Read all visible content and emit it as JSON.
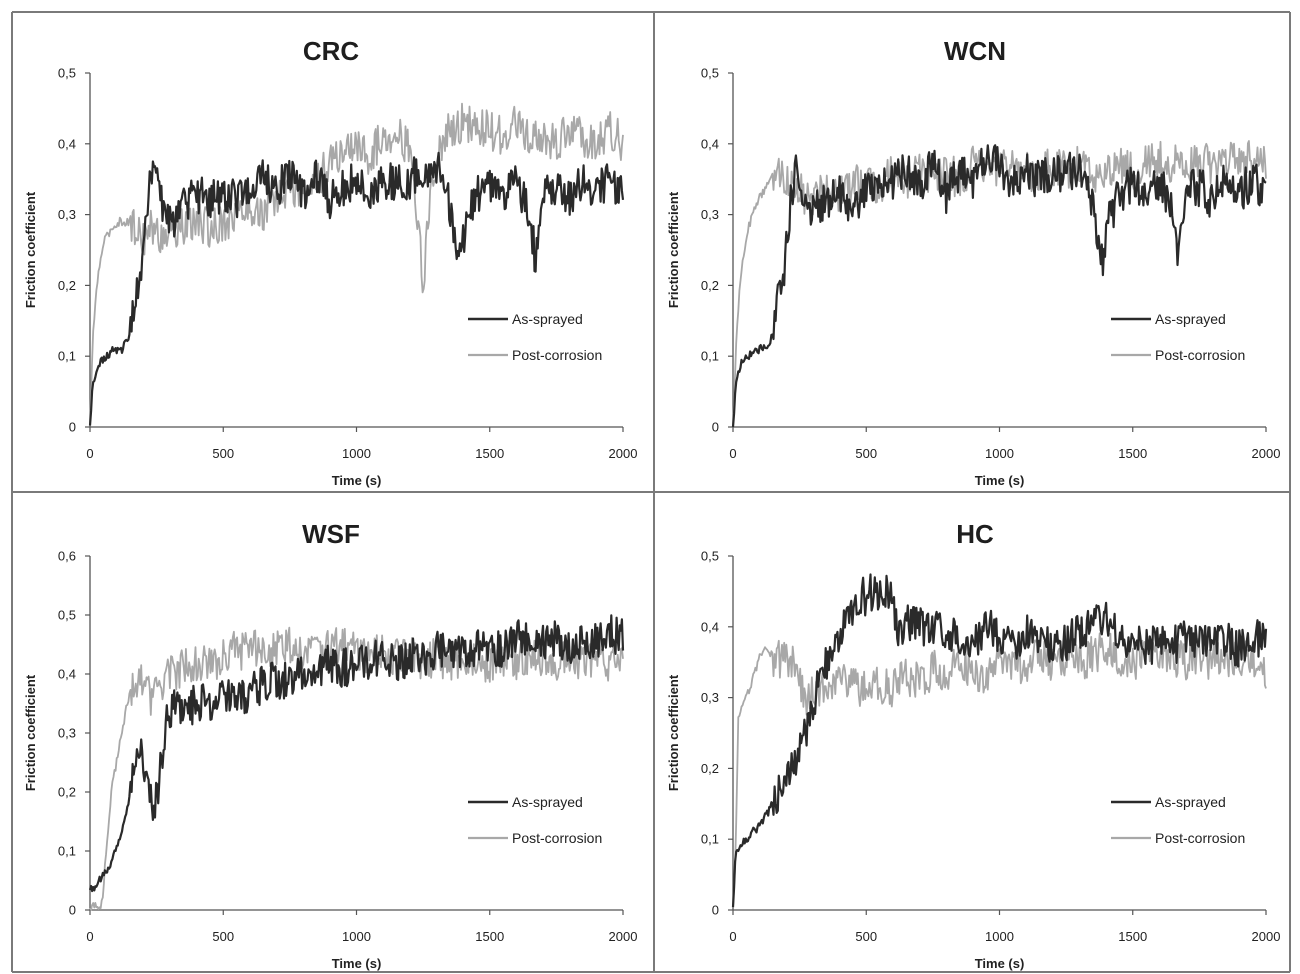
{
  "colors": {
    "as_sprayed": "#2a2a2a",
    "post_corrosion": "#a8a8a8",
    "frame": "#7a7a7a",
    "axis": "#555555"
  },
  "chart_data": [
    {
      "type": "line",
      "title": "CRC",
      "xlabel": "Time (s)",
      "ylabel": "Friction coefficient",
      "xlim": [
        0,
        2000
      ],
      "ylim": [
        0,
        0.5
      ],
      "x_ticks": [
        "0",
        "500",
        "1000",
        "1500",
        "2000"
      ],
      "y_ticks": [
        "0",
        "0,1",
        "0,2",
        "0,3",
        "0,4",
        "0,5"
      ],
      "legend": {
        "placement": "bottom-right",
        "entries": [
          "As-sprayed",
          "Post-corrosion"
        ]
      },
      "grid": false,
      "series": [
        {
          "name": "As-sprayed",
          "x": [
            0,
            10,
            30,
            60,
            90,
            120,
            150,
            170,
            190,
            210,
            230,
            240,
            260,
            300,
            350,
            400,
            450,
            500,
            550,
            600,
            650,
            700,
            750,
            800,
            850,
            900,
            950,
            1000,
            1050,
            1100,
            1150,
            1200,
            1250,
            1300,
            1340,
            1370,
            1390,
            1410,
            1450,
            1500,
            1550,
            1600,
            1650,
            1670,
            1700,
            1750,
            1800,
            1850,
            1900,
            1950,
            2000
          ],
          "y": [
            0.0,
            0.06,
            0.09,
            0.1,
            0.11,
            0.11,
            0.13,
            0.18,
            0.22,
            0.3,
            0.35,
            0.37,
            0.32,
            0.29,
            0.31,
            0.33,
            0.32,
            0.33,
            0.32,
            0.34,
            0.35,
            0.33,
            0.36,
            0.33,
            0.35,
            0.32,
            0.34,
            0.35,
            0.33,
            0.35,
            0.34,
            0.35,
            0.36,
            0.37,
            0.34,
            0.25,
            0.24,
            0.29,
            0.33,
            0.34,
            0.32,
            0.35,
            0.3,
            0.24,
            0.33,
            0.34,
            0.32,
            0.35,
            0.33,
            0.35,
            0.33
          ]
        },
        {
          "name": "Post-corrosion",
          "x": [
            0,
            10,
            25,
            50,
            80,
            110,
            140,
            170,
            200,
            230,
            260,
            300,
            350,
            400,
            450,
            500,
            550,
            600,
            650,
            700,
            750,
            800,
            850,
            900,
            950,
            1000,
            1050,
            1100,
            1150,
            1200,
            1230,
            1250,
            1280,
            1320,
            1350,
            1400,
            1450,
            1500,
            1550,
            1600,
            1650,
            1700,
            1750,
            1800,
            1850,
            1900,
            1950,
            2000
          ],
          "y": [
            0.0,
            0.12,
            0.2,
            0.26,
            0.28,
            0.29,
            0.29,
            0.28,
            0.27,
            0.28,
            0.27,
            0.28,
            0.28,
            0.29,
            0.28,
            0.29,
            0.3,
            0.31,
            0.3,
            0.32,
            0.34,
            0.33,
            0.35,
            0.37,
            0.39,
            0.4,
            0.38,
            0.41,
            0.42,
            0.39,
            0.3,
            0.19,
            0.35,
            0.4,
            0.42,
            0.43,
            0.42,
            0.42,
            0.41,
            0.43,
            0.4,
            0.41,
            0.4,
            0.42,
            0.41,
            0.4,
            0.42,
            0.4
          ]
        }
      ]
    },
    {
      "type": "line",
      "title": "WCN",
      "xlabel": "Time (s)",
      "ylabel": "Friction coefficient",
      "xlim": [
        0,
        2000
      ],
      "ylim": [
        0,
        0.5
      ],
      "x_ticks": [
        "0",
        "500",
        "1000",
        "1500",
        "2000"
      ],
      "y_ticks": [
        "0",
        "0,1",
        "0,2",
        "0,3",
        "0,4",
        "0,5"
      ],
      "legend": {
        "placement": "bottom-right",
        "entries": [
          "As-sprayed",
          "Post-corrosion"
        ]
      },
      "grid": false,
      "series": [
        {
          "name": "As-sprayed",
          "x": [
            0,
            10,
            30,
            60,
            90,
            120,
            150,
            170,
            190,
            210,
            230,
            240,
            260,
            300,
            350,
            400,
            450,
            500,
            550,
            600,
            650,
            700,
            750,
            800,
            850,
            900,
            950,
            1000,
            1050,
            1100,
            1150,
            1200,
            1250,
            1300,
            1340,
            1370,
            1390,
            1410,
            1450,
            1500,
            1550,
            1600,
            1650,
            1670,
            1700,
            1750,
            1800,
            1850,
            1900,
            1950,
            2000
          ],
          "y": [
            0.0,
            0.06,
            0.09,
            0.1,
            0.11,
            0.11,
            0.13,
            0.18,
            0.22,
            0.3,
            0.35,
            0.37,
            0.33,
            0.3,
            0.32,
            0.33,
            0.31,
            0.34,
            0.33,
            0.35,
            0.36,
            0.34,
            0.37,
            0.33,
            0.36,
            0.34,
            0.38,
            0.37,
            0.34,
            0.36,
            0.35,
            0.36,
            0.36,
            0.36,
            0.33,
            0.26,
            0.24,
            0.29,
            0.33,
            0.34,
            0.32,
            0.35,
            0.3,
            0.24,
            0.33,
            0.34,
            0.32,
            0.35,
            0.33,
            0.35,
            0.33
          ]
        },
        {
          "name": "Post-corrosion",
          "x": [
            0,
            10,
            25,
            50,
            80,
            110,
            140,
            170,
            200,
            240,
            280,
            320,
            360,
            400,
            450,
            500,
            550,
            600,
            650,
            700,
            750,
            800,
            850,
            900,
            950,
            1000,
            1050,
            1100,
            1150,
            1200,
            1250,
            1300,
            1350,
            1400,
            1450,
            1500,
            1550,
            1600,
            1650,
            1700,
            1750,
            1800,
            1850,
            1900,
            1950,
            2000
          ],
          "y": [
            0.0,
            0.1,
            0.2,
            0.27,
            0.31,
            0.33,
            0.35,
            0.36,
            0.35,
            0.34,
            0.32,
            0.33,
            0.34,
            0.33,
            0.34,
            0.35,
            0.34,
            0.36,
            0.35,
            0.36,
            0.35,
            0.36,
            0.35,
            0.37,
            0.36,
            0.36,
            0.37,
            0.36,
            0.36,
            0.37,
            0.36,
            0.37,
            0.36,
            0.36,
            0.37,
            0.36,
            0.37,
            0.38,
            0.37,
            0.37,
            0.38,
            0.37,
            0.38,
            0.37,
            0.38,
            0.37
          ]
        }
      ]
    },
    {
      "type": "line",
      "title": "WSF",
      "xlabel": "Time (s)",
      "ylabel": "Friction coefficient",
      "xlim": [
        0,
        2000
      ],
      "ylim": [
        0,
        0.6
      ],
      "x_ticks": [
        "0",
        "500",
        "1000",
        "1500",
        "2000"
      ],
      "y_ticks": [
        "0",
        "0,1",
        "0,2",
        "0,3",
        "0,4",
        "0,5",
        "0,6"
      ],
      "legend": {
        "placement": "bottom-right",
        "entries": [
          "As-sprayed",
          "Post-corrosion"
        ]
      },
      "grid": false,
      "series": [
        {
          "name": "As-sprayed",
          "x": [
            0,
            20,
            50,
            80,
            110,
            140,
            160,
            180,
            200,
            220,
            240,
            260,
            280,
            300,
            350,
            400,
            450,
            500,
            550,
            600,
            650,
            700,
            750,
            800,
            850,
            900,
            950,
            1000,
            1050,
            1100,
            1150,
            1200,
            1250,
            1300,
            1350,
            1400,
            1450,
            1500,
            1550,
            1600,
            1650,
            1700,
            1750,
            1800,
            1850,
            1900,
            1950,
            2000
          ],
          "y": [
            0.035,
            0.04,
            0.06,
            0.08,
            0.12,
            0.17,
            0.22,
            0.27,
            0.26,
            0.2,
            0.18,
            0.22,
            0.3,
            0.34,
            0.34,
            0.35,
            0.35,
            0.36,
            0.36,
            0.37,
            0.38,
            0.39,
            0.39,
            0.4,
            0.41,
            0.42,
            0.41,
            0.42,
            0.42,
            0.43,
            0.42,
            0.43,
            0.43,
            0.44,
            0.44,
            0.43,
            0.44,
            0.45,
            0.44,
            0.46,
            0.45,
            0.46,
            0.46,
            0.45,
            0.46,
            0.46,
            0.47,
            0.46
          ]
        },
        {
          "name": "Post-corrosion",
          "x": [
            0,
            30,
            45,
            60,
            80,
            110,
            140,
            170,
            200,
            230,
            260,
            300,
            350,
            400,
            450,
            500,
            550,
            600,
            650,
            700,
            750,
            800,
            850,
            900,
            950,
            1000,
            1050,
            1100,
            1150,
            1200,
            1250,
            1300,
            1350,
            1400,
            1450,
            1500,
            1550,
            1600,
            1650,
            1700,
            1750,
            1800,
            1850,
            1900,
            1950,
            2000
          ],
          "y": [
            0.005,
            0.005,
            0.01,
            0.1,
            0.2,
            0.28,
            0.35,
            0.39,
            0.38,
            0.36,
            0.38,
            0.4,
            0.41,
            0.42,
            0.41,
            0.43,
            0.44,
            0.44,
            0.45,
            0.44,
            0.45,
            0.44,
            0.45,
            0.44,
            0.45,
            0.44,
            0.43,
            0.44,
            0.43,
            0.43,
            0.42,
            0.43,
            0.42,
            0.43,
            0.42,
            0.42,
            0.43,
            0.42,
            0.43,
            0.42,
            0.42,
            0.43,
            0.42,
            0.43,
            0.42,
            0.42
          ]
        }
      ]
    },
    {
      "type": "line",
      "title": "HC",
      "xlabel": "Time (s)",
      "ylabel": "Friction coefficient",
      "xlim": [
        0,
        2000
      ],
      "ylim": [
        0,
        0.5
      ],
      "x_ticks": [
        "0",
        "500",
        "1000",
        "1500",
        "2000"
      ],
      "y_ticks": [
        "0",
        "0,1",
        "0,2",
        "0,3",
        "0,4",
        "0,5"
      ],
      "legend": {
        "placement": "bottom-right",
        "entries": [
          "As-sprayed",
          "Post-corrosion"
        ]
      },
      "grid": false,
      "series": [
        {
          "name": "As-sprayed",
          "x": [
            0,
            10,
            25,
            50,
            100,
            150,
            200,
            250,
            280,
            300,
            330,
            360,
            400,
            450,
            480,
            520,
            560,
            600,
            620,
            640,
            680,
            720,
            760,
            800,
            850,
            900,
            950,
            1000,
            1050,
            1100,
            1150,
            1200,
            1250,
            1300,
            1350,
            1400,
            1450,
            1500,
            1550,
            1600,
            1650,
            1700,
            1750,
            1800,
            1850,
            1900,
            1950,
            2000
          ],
          "y": [
            0.0,
            0.08,
            0.09,
            0.1,
            0.12,
            0.15,
            0.18,
            0.22,
            0.26,
            0.29,
            0.33,
            0.36,
            0.39,
            0.42,
            0.44,
            0.45,
            0.45,
            0.44,
            0.38,
            0.4,
            0.41,
            0.39,
            0.4,
            0.38,
            0.39,
            0.38,
            0.4,
            0.39,
            0.38,
            0.39,
            0.38,
            0.37,
            0.38,
            0.39,
            0.4,
            0.41,
            0.38,
            0.39,
            0.37,
            0.38,
            0.37,
            0.39,
            0.38,
            0.37,
            0.38,
            0.37,
            0.38,
            0.39
          ]
        },
        {
          "name": "Post-corrosion",
          "x": [
            0,
            10,
            20,
            40,
            70,
            100,
            130,
            160,
            200,
            230,
            250,
            270,
            300,
            350,
            400,
            450,
            500,
            550,
            600,
            650,
            700,
            750,
            800,
            850,
            900,
            950,
            1000,
            1050,
            1100,
            1150,
            1200,
            1250,
            1300,
            1350,
            1400,
            1450,
            1500,
            1550,
            1600,
            1650,
            1700,
            1750,
            1800,
            1850,
            1900,
            1950,
            2000
          ],
          "y": [
            0.0,
            0.08,
            0.27,
            0.29,
            0.32,
            0.36,
            0.37,
            0.35,
            0.36,
            0.35,
            0.32,
            0.3,
            0.31,
            0.32,
            0.33,
            0.32,
            0.31,
            0.32,
            0.31,
            0.33,
            0.32,
            0.34,
            0.33,
            0.35,
            0.34,
            0.33,
            0.35,
            0.34,
            0.35,
            0.36,
            0.35,
            0.36,
            0.35,
            0.36,
            0.37,
            0.36,
            0.35,
            0.36,
            0.37,
            0.36,
            0.35,
            0.36,
            0.35,
            0.36,
            0.35,
            0.36,
            0.34
          ]
        }
      ]
    }
  ]
}
